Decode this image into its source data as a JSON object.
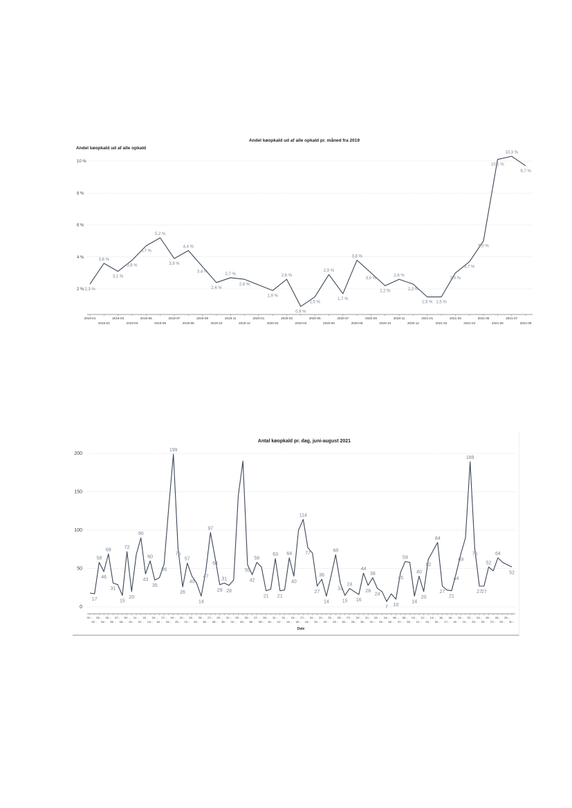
{
  "chart_data": [
    {
      "type": "line",
      "title": "Andel køopkald ud af alle opkald pr. måned fra 2019",
      "ylabel": "Andel køopkald ud af alle opkald",
      "xlabel": "",
      "ylim": [
        0.8,
        10
      ],
      "yticks": [
        "2 %",
        "4 %",
        "6 %",
        "8 %",
        "10 %"
      ],
      "ytick_values": [
        2,
        4,
        6,
        8,
        10
      ],
      "grid": true,
      "line_color": "#3a4556",
      "label_color": "#7a8391",
      "x": [
        "2019-01",
        "2019-02",
        "2019-03",
        "2019-04",
        "2019-05",
        "2019-06",
        "2019-07",
        "2019-08",
        "2019-09",
        "2019-10",
        "2019-11",
        "2019-12",
        "2020-01",
        "2020-02",
        "2020-03",
        "2020-04",
        "2020-05",
        "2020-06",
        "2020-07",
        "2020-08",
        "2020-09",
        "2020-10",
        "2020-11",
        "2020-12",
        "2021-01",
        "2021-02",
        "2021-03",
        "2021-04",
        "2021-05",
        "2021-06",
        "2021-07",
        "2021-08"
      ],
      "values": [
        2.3,
        3.6,
        3.1,
        3.8,
        4.7,
        5.2,
        3.9,
        4.4,
        3.4,
        2.4,
        2.7,
        2.6,
        2.25,
        1.9,
        2.6,
        0.9,
        1.5,
        2.9,
        1.7,
        3.8,
        3.0,
        2.2,
        2.6,
        2.3,
        1.5,
        1.5,
        3.0,
        3.7,
        5.0,
        10.1,
        10.3,
        9.7
      ],
      "labels": [
        "2,3 %",
        "3,6 %",
        "3,1 %",
        "3,8 %",
        "4,7 %",
        "5,2 %",
        "3,9 %",
        "4,4 %",
        "3,4 %",
        "2,4 %",
        "2,7 %",
        "2,6 %",
        null,
        "1,9 %",
        "2,6 %",
        "0,9 %",
        "1,5 %",
        "2,9 %",
        "1,7 %",
        "3,8 %",
        "3,0 %",
        "2,2 %",
        "2,6 %",
        "2,3 %",
        "1,5 %",
        "1,5 %",
        "3,0 %",
        "3,7 %",
        "5,0 %",
        "10,1 %",
        "10,3 %",
        "9,7 %"
      ]
    },
    {
      "type": "line",
      "title": "Antal køopkald pr. dag, juni-august 2021",
      "xlabel": "Date",
      "ylabel": "",
      "ylim": [
        0,
        200
      ],
      "yticks": [
        "0",
        "50",
        "100",
        "150",
        "200"
      ],
      "ytick_values": [
        0,
        50,
        100,
        150,
        200
      ],
      "grid": true,
      "line_color": "#3a4556",
      "label_color": "#7a8391",
      "x": [
        "01/…",
        "02/…",
        "03/…",
        "04/…",
        "05/…",
        "06/…",
        "07/…",
        "08/…",
        "09/…",
        "10/…",
        "11/…",
        "12/…",
        "13/…",
        "14/…",
        "15/…",
        "16/…",
        "17/…",
        "18/…",
        "19/…",
        "20/…",
        "21/…",
        "22/…",
        "23/…",
        "24/…",
        "25/…",
        "26/…",
        "27/…",
        "28/…",
        "29/…",
        "30/…",
        "01/…",
        "02/…",
        "03/…",
        "04/…",
        "05/…",
        "06/…",
        "07/…",
        "08/…",
        "09/…",
        "10/…",
        "11/…",
        "12/…",
        "13/…",
        "14/…",
        "15/…",
        "16/…",
        "17/…",
        "18/…",
        "19/…",
        "20/…",
        "21/…",
        "22/…",
        "23/…",
        "24/…",
        "25/…",
        "26/…",
        "27/…",
        "28/…",
        "29/…",
        "30/…",
        "31/…",
        "01/…",
        "02/…",
        "03/…",
        "04/…",
        "05/…",
        "06/…",
        "07/…",
        "08/…",
        "09/…",
        "10/…",
        "11/…",
        "12/…",
        "13/…",
        "14/…",
        "15/…",
        "16/…",
        "17/…",
        "18/…",
        "19/…",
        "20/…",
        "21/…",
        "22/…",
        "23/…",
        "24/…",
        "25/…",
        "26/…",
        "27/…",
        "28/…",
        "29/…",
        "30/…",
        "31/…"
      ],
      "values": [
        18,
        17,
        58,
        46,
        69,
        31,
        29,
        15,
        72,
        20,
        68,
        90,
        43,
        60,
        35,
        38,
        56,
        130,
        199,
        76,
        26,
        57,
        40,
        31,
        14,
        47,
        97,
        64,
        29,
        31,
        28,
        35,
        145,
        190,
        55,
        42,
        58,
        52,
        21,
        23,
        63,
        21,
        22,
        64,
        40,
        100,
        114,
        77,
        70,
        27,
        36,
        14,
        40,
        68,
        31,
        15,
        24,
        20,
        16,
        44,
        28,
        38,
        24,
        20,
        7,
        17,
        10,
        45,
        59,
        58,
        14,
        40,
        20,
        62,
        73,
        84,
        27,
        22,
        21,
        44,
        69,
        90,
        189,
        76,
        27,
        27,
        52,
        47,
        64,
        58,
        55,
        52
      ],
      "labeled_points": [
        1,
        2,
        3,
        4,
        5,
        7,
        8,
        9,
        11,
        12,
        13,
        14,
        16,
        18,
        19,
        20,
        21,
        22,
        24,
        25,
        26,
        27,
        28,
        29,
        30,
        34,
        35,
        36,
        38,
        40,
        41,
        43,
        44,
        46,
        47,
        49,
        50,
        51,
        53,
        54,
        55,
        56,
        58,
        59,
        60,
        61,
        62,
        64,
        66,
        67,
        68,
        70,
        71,
        72,
        73,
        75,
        76,
        78,
        79,
        80,
        82,
        83,
        84,
        85,
        86,
        88,
        91
      ]
    }
  ]
}
